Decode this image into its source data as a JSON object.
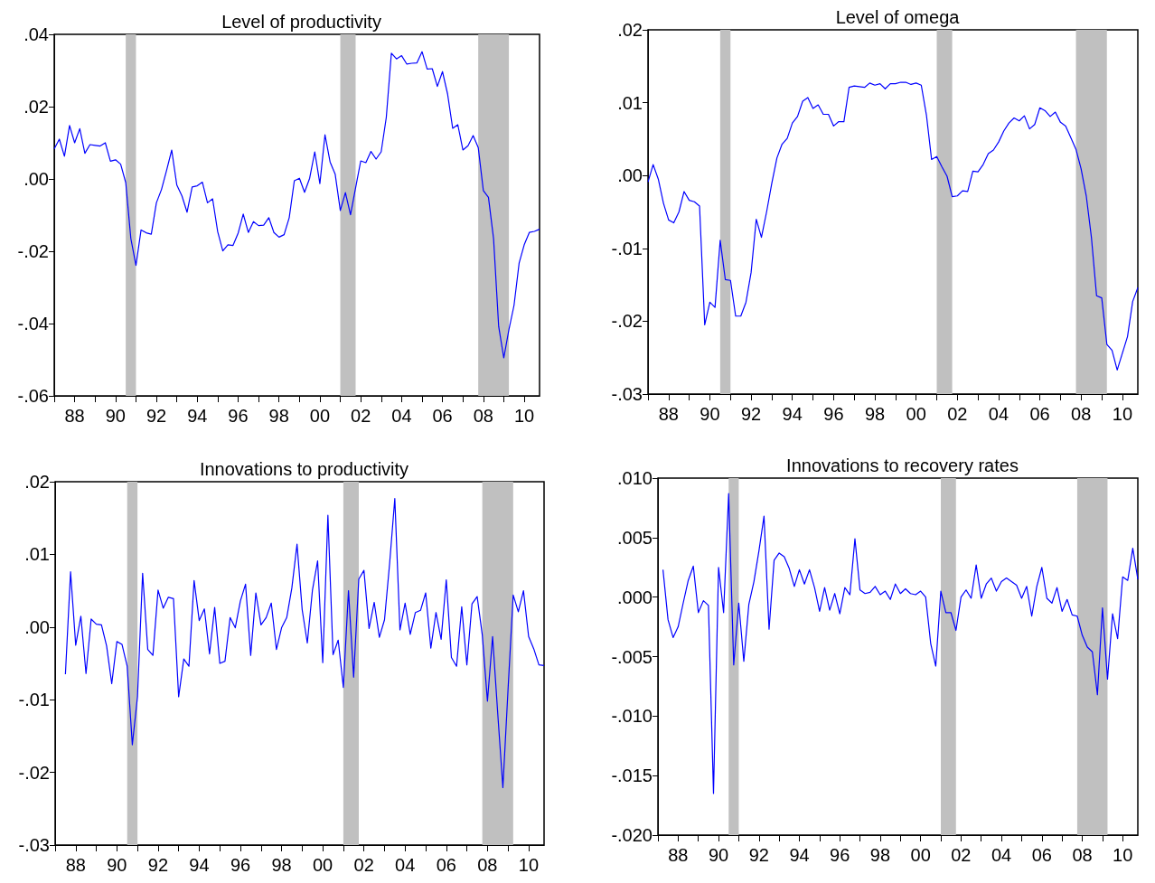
{
  "chart_data": [
    {
      "type": "line",
      "title": "Level of productivity",
      "color": "#0000ff",
      "x": [
        1987,
        1987.25,
        1987.5,
        1987.75,
        1988,
        1988.25,
        1988.5,
        1988.75,
        1989,
        1989.25,
        1989.5,
        1989.75,
        1990,
        1990.25,
        1990.5,
        1990.75,
        1991,
        1991.25,
        1991.5,
        1991.75,
        1992,
        1992.25,
        1992.5,
        1992.75,
        1993,
        1993.25,
        1993.5,
        1993.75,
        1994,
        1994.25,
        1994.5,
        1994.75,
        1995,
        1995.25,
        1995.5,
        1995.75,
        1996,
        1996.25,
        1996.5,
        1996.75,
        1997,
        1997.25,
        1997.5,
        1997.75,
        1998,
        1998.25,
        1998.5,
        1998.75,
        1999,
        1999.25,
        1999.5,
        1999.75,
        2000,
        2000.25,
        2000.5,
        2000.75,
        2001,
        2001.25,
        2001.5,
        2001.75,
        2002,
        2002.25,
        2002.5,
        2002.75,
        2003,
        2003.25,
        2003.5,
        2003.75,
        2004,
        2004.25,
        2004.5,
        2004.75,
        2005,
        2005.25,
        2005.5,
        2005.75,
        2006,
        2006.25,
        2006.5,
        2006.75,
        2007,
        2007.25,
        2007.5,
        2007.75,
        2008,
        2008.25,
        2008.5,
        2008.75,
        2009,
        2009.25,
        2009.5,
        2009.75,
        2010,
        2010.25,
        2010.5,
        2010.75
      ],
      "values": [
        0.0083,
        0.011,
        0.0063,
        0.0148,
        0.01,
        0.0139,
        0.0071,
        0.0095,
        0.0093,
        0.0091,
        0.01,
        0.0049,
        0.0053,
        0.0041,
        -0.001,
        -0.0165,
        -0.0239,
        -0.0141,
        -0.0149,
        -0.0153,
        -0.0066,
        -0.0029,
        0.0024,
        0.008,
        -0.0017,
        -0.0047,
        -0.0092,
        -0.0022,
        -0.0019,
        -0.0009,
        -0.0066,
        -0.0055,
        -0.0146,
        -0.0199,
        -0.0182,
        -0.0184,
        -0.015,
        -0.0097,
        -0.0148,
        -0.0118,
        -0.0129,
        -0.0128,
        -0.0107,
        -0.0148,
        -0.0161,
        -0.0154,
        -0.0107,
        -0.0005,
        0.0002,
        -0.0037,
        0.0002,
        0.0075,
        -0.0013,
        0.0122,
        0.0047,
        0.0013,
        -0.0087,
        -0.0038,
        -0.0099,
        -0.0024,
        0.005,
        0.0045,
        0.0076,
        0.0055,
        0.0075,
        0.017,
        0.0348,
        0.0332,
        0.0341,
        0.0318,
        0.032,
        0.0321,
        0.0352,
        0.0304,
        0.0305,
        0.0256,
        0.0297,
        0.0235,
        0.014,
        0.015,
        0.008,
        0.0092,
        0.012,
        0.0087,
        -0.0032,
        -0.0051,
        -0.0165,
        -0.0408,
        -0.0495,
        -0.0417,
        -0.035,
        -0.0233,
        -0.0182,
        -0.0148,
        -0.0145,
        -0.0139
      ],
      "xlim": [
        1987,
        2010.75
      ],
      "xticks": [
        {
          "value": 1987,
          "label": null
        },
        {
          "value": 1988,
          "label": "88"
        },
        {
          "value": 1989,
          "label": null
        },
        {
          "value": 1990,
          "label": "90"
        },
        {
          "value": 1991,
          "label": null
        },
        {
          "value": 1992,
          "label": "92"
        },
        {
          "value": 1993,
          "label": null
        },
        {
          "value": 1994,
          "label": "94"
        },
        {
          "value": 1995,
          "label": null
        },
        {
          "value": 1996,
          "label": "96"
        },
        {
          "value": 1997,
          "label": null
        },
        {
          "value": 1998,
          "label": "98"
        },
        {
          "value": 1999,
          "label": null
        },
        {
          "value": 2000,
          "label": "00"
        },
        {
          "value": 2001,
          "label": null
        },
        {
          "value": 2002,
          "label": "02"
        },
        {
          "value": 2003,
          "label": null
        },
        {
          "value": 2004,
          "label": "04"
        },
        {
          "value": 2005,
          "label": null
        },
        {
          "value": 2006,
          "label": "06"
        },
        {
          "value": 2007,
          "label": null
        },
        {
          "value": 2008,
          "label": "08"
        },
        {
          "value": 2009,
          "label": null
        },
        {
          "value": 2010,
          "label": "10"
        }
      ],
      "ylim": [
        -0.06,
        0.04
      ],
      "yticks": [
        {
          "value": -0.06,
          "label": "-.06"
        },
        {
          "value": -0.04,
          "label": "-.04"
        },
        {
          "value": -0.02,
          "label": "-.02"
        },
        {
          "value": 0,
          "label": ".00"
        },
        {
          "value": 0.02,
          "label": ".02"
        },
        {
          "value": 0.04,
          "label": ".04"
        }
      ],
      "bands": [
        {
          "axis": "x",
          "from": 1990.5,
          "to": 1991,
          "color": "#c0c0c0"
        },
        {
          "axis": "x",
          "from": 2001,
          "to": 2001.75,
          "color": "#c0c0c0"
        },
        {
          "axis": "x",
          "from": 2007.75,
          "to": 2009.25,
          "color": "#c0c0c0"
        }
      ],
      "grid": false
    },
    {
      "type": "line",
      "title": "Level of omega",
      "color": "#0000ff",
      "x": [
        1987,
        1987.25,
        1987.5,
        1987.75,
        1988,
        1988.25,
        1988.5,
        1988.75,
        1989,
        1989.25,
        1989.5,
        1989.75,
        1990,
        1990.25,
        1990.5,
        1990.75,
        1991,
        1991.25,
        1991.5,
        1991.75,
        1992,
        1992.25,
        1992.5,
        1992.75,
        1993,
        1993.25,
        1993.5,
        1993.75,
        1994,
        1994.25,
        1994.5,
        1994.75,
        1995,
        1995.25,
        1995.5,
        1995.75,
        1996,
        1996.25,
        1996.5,
        1996.75,
        1997,
        1997.25,
        1997.5,
        1997.75,
        1998,
        1998.25,
        1998.5,
        1998.75,
        1999,
        1999.25,
        1999.5,
        1999.75,
        2000,
        2000.25,
        2000.5,
        2000.75,
        2001,
        2001.25,
        2001.5,
        2001.75,
        2002,
        2002.25,
        2002.5,
        2002.75,
        2003,
        2003.25,
        2003.5,
        2003.75,
        2004,
        2004.25,
        2004.5,
        2004.75,
        2005,
        2005.25,
        2005.5,
        2005.75,
        2006,
        2006.25,
        2006.5,
        2006.75,
        2007,
        2007.25,
        2007.5,
        2007.75,
        2008,
        2008.25,
        2008.5,
        2008.75,
        2009,
        2009.25,
        2009.5,
        2009.75,
        2010,
        2010.25,
        2010.5,
        2010.75
      ],
      "values": [
        -0.0009,
        0.0015,
        -0.0005,
        -0.0038,
        -0.0061,
        -0.0065,
        -0.005,
        -0.0022,
        -0.0034,
        -0.0036,
        -0.0042,
        -0.0205,
        -0.0174,
        -0.0181,
        -0.0089,
        -0.0143,
        -0.0144,
        -0.0193,
        -0.0193,
        -0.0174,
        -0.0133,
        -0.006,
        -0.0085,
        -0.005,
        -0.0011,
        0.0024,
        0.0043,
        0.0051,
        0.0072,
        0.0081,
        0.0102,
        0.0107,
        0.0092,
        0.0097,
        0.0084,
        0.0084,
        0.0068,
        0.0074,
        0.0074,
        0.0121,
        0.0123,
        0.0122,
        0.0121,
        0.0127,
        0.0124,
        0.0126,
        0.0119,
        0.0126,
        0.0126,
        0.0128,
        0.0128,
        0.0125,
        0.0127,
        0.0124,
        0.0083,
        0.0022,
        0.0026,
        0.0012,
        -0.0001,
        -0.0029,
        -0.0028,
        -0.0021,
        -0.0022,
        0.0006,
        0.0005,
        0.0015,
        0.003,
        0.0035,
        0.0046,
        0.0061,
        0.0072,
        0.0079,
        0.0075,
        0.0082,
        0.0064,
        0.007,
        0.0093,
        0.0089,
        0.0081,
        0.0087,
        0.0073,
        0.0068,
        0.0052,
        0.0036,
        0.0009,
        -0.0028,
        -0.0085,
        -0.0165,
        -0.0168,
        -0.0232,
        -0.024,
        -0.0267,
        -0.0244,
        -0.0221,
        -0.0173,
        -0.0154
      ],
      "xlim": [
        1987,
        2010.75
      ],
      "xticks": [
        {
          "value": 1987,
          "label": null
        },
        {
          "value": 1988,
          "label": "88"
        },
        {
          "value": 1989,
          "label": null
        },
        {
          "value": 1990,
          "label": "90"
        },
        {
          "value": 1991,
          "label": null
        },
        {
          "value": 1992,
          "label": "92"
        },
        {
          "value": 1993,
          "label": null
        },
        {
          "value": 1994,
          "label": "94"
        },
        {
          "value": 1995,
          "label": null
        },
        {
          "value": 1996,
          "label": "96"
        },
        {
          "value": 1997,
          "label": null
        },
        {
          "value": 1998,
          "label": "98"
        },
        {
          "value": 1999,
          "label": null
        },
        {
          "value": 2000,
          "label": "00"
        },
        {
          "value": 2001,
          "label": null
        },
        {
          "value": 2002,
          "label": "02"
        },
        {
          "value": 2003,
          "label": null
        },
        {
          "value": 2004,
          "label": "04"
        },
        {
          "value": 2005,
          "label": null
        },
        {
          "value": 2006,
          "label": "06"
        },
        {
          "value": 2007,
          "label": null
        },
        {
          "value": 2008,
          "label": "08"
        },
        {
          "value": 2009,
          "label": null
        },
        {
          "value": 2010,
          "label": "10"
        }
      ],
      "ylim": [
        -0.03,
        0.02
      ],
      "yticks": [
        {
          "value": -0.03,
          "label": "-.03"
        },
        {
          "value": -0.02,
          "label": "-.02"
        },
        {
          "value": -0.01,
          "label": "-.01"
        },
        {
          "value": 0,
          "label": ".00"
        },
        {
          "value": 0.01,
          "label": ".01"
        },
        {
          "value": 0.02,
          "label": ".02"
        }
      ],
      "bands": [
        {
          "axis": "x",
          "from": 1990.5,
          "to": 1991,
          "color": "#c0c0c0"
        },
        {
          "axis": "x",
          "from": 2001,
          "to": 2001.75,
          "color": "#c0c0c0"
        },
        {
          "axis": "x",
          "from": 2007.75,
          "to": 2009.25,
          "color": "#c0c0c0"
        }
      ],
      "grid": false
    },
    {
      "type": "line",
      "title": "Innovations to productivity",
      "color": "#0000ff",
      "x": [
        1987.5,
        1987.75,
        1988,
        1988.25,
        1988.5,
        1988.75,
        1989,
        1989.25,
        1989.5,
        1989.75,
        1990,
        1990.25,
        1990.5,
        1990.75,
        1991,
        1991.25,
        1991.5,
        1991.75,
        1992,
        1992.25,
        1992.5,
        1992.75,
        1993,
        1993.25,
        1993.5,
        1993.75,
        1994,
        1994.25,
        1994.5,
        1994.75,
        1995,
        1995.25,
        1995.5,
        1995.75,
        1996,
        1996.25,
        1996.5,
        1996.75,
        1997,
        1997.25,
        1997.5,
        1997.75,
        1998,
        1998.25,
        1998.5,
        1998.75,
        1999,
        1999.25,
        1999.5,
        1999.75,
        2000,
        2000.25,
        2000.5,
        2000.75,
        2001,
        2001.25,
        2001.5,
        2001.75,
        2002,
        2002.25,
        2002.5,
        2002.75,
        2003,
        2003.25,
        2003.5,
        2003.75,
        2004,
        2004.25,
        2004.5,
        2004.75,
        2005,
        2005.25,
        2005.5,
        2005.75,
        2006,
        2006.25,
        2006.5,
        2006.75,
        2007,
        2007.25,
        2007.5,
        2007.75,
        2008,
        2008.25,
        2008.5,
        2008.75,
        2009,
        2009.25,
        2009.5,
        2009.75,
        2010,
        2010.25,
        2010.5,
        2010.75
      ],
      "values": [
        -0.0065,
        0.0076,
        -0.0025,
        0.0015,
        -0.0064,
        0.0011,
        0.0004,
        0.0003,
        -0.0026,
        -0.0078,
        -0.002,
        -0.0024,
        -0.0054,
        -0.0162,
        -0.0096,
        0.0074,
        -0.0031,
        -0.0039,
        0.0051,
        0.0026,
        0.0041,
        0.0039,
        -0.0096,
        -0.0044,
        -0.0054,
        0.0064,
        0.0009,
        0.0025,
        -0.0037,
        0.0027,
        -0.005,
        -0.0047,
        0.0013,
        -0.0001,
        0.0036,
        0.0059,
        -0.0039,
        0.0047,
        0.0003,
        0.0013,
        0.0033,
        -0.0031,
        -0.0001,
        0.0013,
        0.0054,
        0.0114,
        0.0024,
        -0.0022,
        0.0051,
        0.0091,
        -0.0049,
        0.0154,
        -0.0038,
        -0.0018,
        -0.0083,
        0.005,
        -0.0069,
        0.0066,
        0.0078,
        -0.0002,
        0.0034,
        -0.0014,
        0.001,
        0.0088,
        0.0177,
        -0.0004,
        0.0033,
        -0.001,
        0.002,
        0.0023,
        0.0047,
        -0.0029,
        0.002,
        -0.0017,
        0.0065,
        -0.0042,
        -0.0054,
        0.0028,
        -0.0052,
        0.0032,
        0.0042,
        -0.0011,
        -0.0102,
        -0.0013,
        -0.0119,
        -0.0221,
        -0.0086,
        0.0044,
        0.0021,
        0.005,
        -0.0013,
        -0.003,
        -0.0052,
        -0.0053
      ],
      "xlim": [
        1987,
        2010.75
      ],
      "xticks": [
        {
          "value": 1987,
          "label": null
        },
        {
          "value": 1988,
          "label": "88"
        },
        {
          "value": 1989,
          "label": null
        },
        {
          "value": 1990,
          "label": "90"
        },
        {
          "value": 1991,
          "label": null
        },
        {
          "value": 1992,
          "label": "92"
        },
        {
          "value": 1993,
          "label": null
        },
        {
          "value": 1994,
          "label": "94"
        },
        {
          "value": 1995,
          "label": null
        },
        {
          "value": 1996,
          "label": "96"
        },
        {
          "value": 1997,
          "label": null
        },
        {
          "value": 1998,
          "label": "98"
        },
        {
          "value": 1999,
          "label": null
        },
        {
          "value": 2000,
          "label": "00"
        },
        {
          "value": 2001,
          "label": null
        },
        {
          "value": 2002,
          "label": "02"
        },
        {
          "value": 2003,
          "label": null
        },
        {
          "value": 2004,
          "label": "04"
        },
        {
          "value": 2005,
          "label": null
        },
        {
          "value": 2006,
          "label": "06"
        },
        {
          "value": 2007,
          "label": null
        },
        {
          "value": 2008,
          "label": "08"
        },
        {
          "value": 2009,
          "label": null
        },
        {
          "value": 2010,
          "label": "10"
        }
      ],
      "ylim": [
        -0.03,
        0.02
      ],
      "yticks": [
        {
          "value": -0.03,
          "label": "-.03"
        },
        {
          "value": -0.02,
          "label": "-.02"
        },
        {
          "value": -0.01,
          "label": "-.01"
        },
        {
          "value": 0,
          "label": ".00"
        },
        {
          "value": 0.01,
          "label": ".01"
        },
        {
          "value": 0.02,
          "label": ".02"
        }
      ],
      "bands": [
        {
          "axis": "x",
          "from": 1990.5,
          "to": 1991,
          "color": "#c0c0c0"
        },
        {
          "axis": "x",
          "from": 2001,
          "to": 2001.75,
          "color": "#c0c0c0"
        },
        {
          "axis": "x",
          "from": 2007.75,
          "to": 2009.25,
          "color": "#c0c0c0"
        }
      ],
      "grid": false
    },
    {
      "type": "line",
      "title": "Innovations to recovery rates",
      "color": "#0000ff",
      "x": [
        1987.25,
        1987.5,
        1987.75,
        1988,
        1988.25,
        1988.5,
        1988.75,
        1989,
        1989.25,
        1989.5,
        1989.75,
        1990,
        1990.25,
        1990.5,
        1990.75,
        1991,
        1991.25,
        1991.5,
        1991.75,
        1992,
        1992.25,
        1992.5,
        1992.75,
        1993,
        1993.25,
        1993.5,
        1993.75,
        1994,
        1994.25,
        1994.5,
        1994.75,
        1995,
        1995.25,
        1995.5,
        1995.75,
        1996,
        1996.25,
        1996.5,
        1996.75,
        1997,
        1997.25,
        1997.5,
        1997.75,
        1998,
        1998.25,
        1998.5,
        1998.75,
        1999,
        1999.25,
        1999.5,
        1999.75,
        2000,
        2000.25,
        2000.5,
        2000.75,
        2001,
        2001.25,
        2001.5,
        2001.75,
        2002,
        2002.25,
        2002.5,
        2002.75,
        2003,
        2003.25,
        2003.5,
        2003.75,
        2004,
        2004.25,
        2004.5,
        2004.75,
        2005,
        2005.25,
        2005.5,
        2005.75,
        2006,
        2006.25,
        2006.5,
        2006.75,
        2007,
        2007.25,
        2007.5,
        2007.75,
        2008,
        2008.25,
        2008.5,
        2008.75,
        2009,
        2009.25,
        2009.5,
        2009.75,
        2010,
        2010.25,
        2010.5,
        2010.75
      ],
      "values": [
        0.0023,
        -0.0019,
        -0.0034,
        -0.0025,
        -0.0005,
        0.0014,
        0.0026,
        -0.0013,
        -0.0003,
        -0.0007,
        -0.0165,
        0.0025,
        -0.0013,
        0.0087,
        -0.0057,
        -0.0005,
        -0.0054,
        -0.0006,
        0.0013,
        0.0039,
        0.0068,
        -0.0027,
        0.0031,
        0.0037,
        0.0034,
        0.0024,
        0.0009,
        0.0023,
        0.0011,
        0.0023,
        0.0008,
        -0.0012,
        0.0008,
        -0.0011,
        0.0003,
        -0.0014,
        0.0008,
        0.0002,
        0.0049,
        0.0006,
        0.0003,
        0.0004,
        0.0009,
        0.0002,
        0.0005,
        -0.0002,
        0.0011,
        0.0003,
        0.0007,
        0.0003,
        0.0002,
        0.0005,
        0,
        -0.0039,
        -0.0058,
        0.0005,
        -0.0013,
        -0.0013,
        -0.0028,
        0,
        0.0006,
        -0.0001,
        0.0027,
        -0.0001,
        0.0011,
        0.0016,
        0.0005,
        0.0013,
        0.0016,
        0.0013,
        0.001,
        -0.0001,
        0.0009,
        -0.0016,
        0.0009,
        0.0025,
        -0.0001,
        -0.0005,
        0.0008,
        -0.0012,
        -0.0002,
        -0.0015,
        -0.0016,
        -0.0032,
        -0.0042,
        -0.0046,
        -0.0082,
        -0.0009,
        -0.0069,
        -0.0014,
        -0.0035,
        0.0017,
        0.0014,
        0.0041,
        0.0015
      ],
      "xlim": [
        1987,
        2010.75
      ],
      "xticks": [
        {
          "value": 1987,
          "label": null
        },
        {
          "value": 1988,
          "label": "88"
        },
        {
          "value": 1989,
          "label": null
        },
        {
          "value": 1990,
          "label": "90"
        },
        {
          "value": 1991,
          "label": null
        },
        {
          "value": 1992,
          "label": "92"
        },
        {
          "value": 1993,
          "label": null
        },
        {
          "value": 1994,
          "label": "94"
        },
        {
          "value": 1995,
          "label": null
        },
        {
          "value": 1996,
          "label": "96"
        },
        {
          "value": 1997,
          "label": null
        },
        {
          "value": 1998,
          "label": "98"
        },
        {
          "value": 1999,
          "label": null
        },
        {
          "value": 2000,
          "label": "00"
        },
        {
          "value": 2001,
          "label": null
        },
        {
          "value": 2002,
          "label": "02"
        },
        {
          "value": 2003,
          "label": null
        },
        {
          "value": 2004,
          "label": "04"
        },
        {
          "value": 2005,
          "label": null
        },
        {
          "value": 2006,
          "label": "06"
        },
        {
          "value": 2007,
          "label": null
        },
        {
          "value": 2008,
          "label": "08"
        },
        {
          "value": 2009,
          "label": null
        },
        {
          "value": 2010,
          "label": "10"
        }
      ],
      "ylim": [
        -0.02,
        0.01
      ],
      "yticks": [
        {
          "value": -0.02,
          "label": "-.020"
        },
        {
          "value": -0.015,
          "label": "-.015"
        },
        {
          "value": -0.01,
          "label": "-.010"
        },
        {
          "value": -0.005,
          "label": "-.005"
        },
        {
          "value": 0,
          "label": ".000"
        },
        {
          "value": 0.005,
          "label": ".005"
        },
        {
          "value": 0.01,
          "label": ".010"
        }
      ],
      "bands": [
        {
          "axis": "x",
          "from": 1990.5,
          "to": 1991,
          "color": "#c0c0c0"
        },
        {
          "axis": "x",
          "from": 2001,
          "to": 2001.75,
          "color": "#c0c0c0"
        },
        {
          "axis": "x",
          "from": 2007.75,
          "to": 2009.25,
          "color": "#c0c0c0"
        }
      ],
      "grid": false
    }
  ]
}
